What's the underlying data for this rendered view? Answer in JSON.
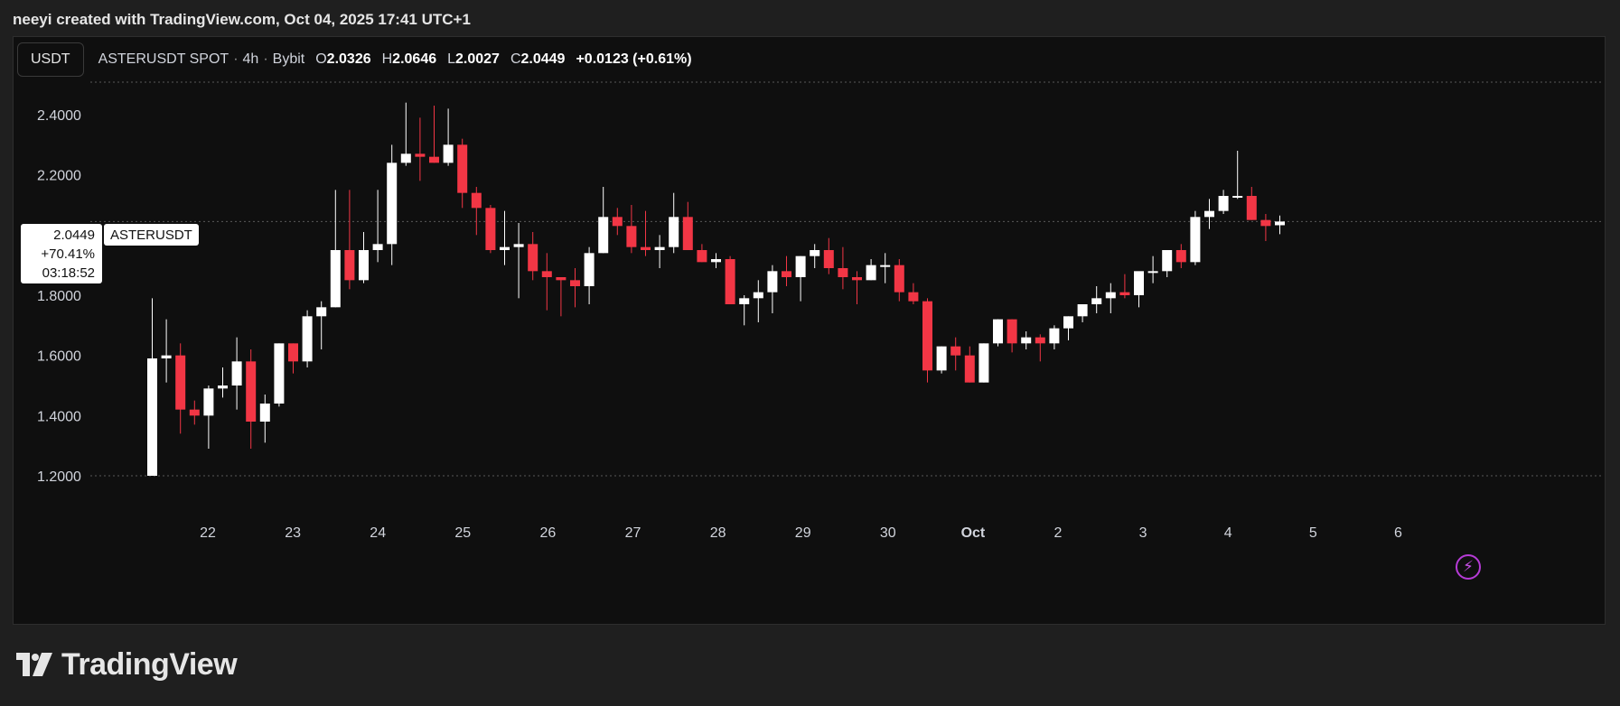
{
  "topbar": {
    "text": "neeyi created with TradingView.com, Oct 04, 2025 17:41 UTC+1"
  },
  "header": {
    "currency": "USDT",
    "symbol": "ASTERUSDT SPOT",
    "interval": "4h",
    "exchange": "Bybit",
    "open_label": "O",
    "open": "2.0326",
    "high_label": "H",
    "high": "2.0646",
    "low_label": "L",
    "low": "2.0027",
    "close_label": "C",
    "close": "2.0449",
    "change": "+0.0123 (+0.61%)"
  },
  "price_tag": {
    "price": "2.0449",
    "percent": "+70.41%",
    "countdown": "03:18:52",
    "symbol": "ASTERUSDT"
  },
  "footer": {
    "brand": "TradingView"
  },
  "colors": {
    "up": "#ffffff",
    "down": "#f23645",
    "background": "#0f0f0f",
    "grid": "#5a5a5a",
    "accent": "#b63bd6"
  },
  "icons": {
    "lightning": "lightning-icon",
    "logo": "tradingview-logo-icon"
  },
  "chart_data": {
    "type": "candlestick",
    "title": "",
    "xlabel": "",
    "ylabel": "",
    "ylim": [
      1.12,
      2.44
    ],
    "y_ticks": [
      "2.4000",
      "2.2000",
      "1.8000",
      "1.6000",
      "1.4000",
      "1.2000"
    ],
    "x_ticks": [
      "22",
      "23",
      "24",
      "25",
      "26",
      "27",
      "28",
      "29",
      "30",
      "Oct",
      "2",
      "3",
      "4",
      "5",
      "6"
    ],
    "last_price": 2.0449,
    "grid": "dotted horizontal lines at top, bottom and last price",
    "series": [
      {
        "ohlc": [
          [
            1.2,
            1.79,
            1.2,
            1.59
          ],
          [
            1.59,
            1.72,
            1.51,
            1.6
          ],
          [
            1.6,
            1.64,
            1.34,
            1.42
          ],
          [
            1.42,
            1.45,
            1.37,
            1.4
          ],
          [
            1.4,
            1.5,
            1.29,
            1.49
          ],
          [
            1.49,
            1.56,
            1.46,
            1.5
          ],
          [
            1.5,
            1.66,
            1.42,
            1.58
          ],
          [
            1.58,
            1.62,
            1.29,
            1.38
          ],
          [
            1.38,
            1.47,
            1.31,
            1.44
          ],
          [
            1.44,
            1.64,
            1.43,
            1.64
          ],
          [
            1.64,
            1.64,
            1.54,
            1.58
          ],
          [
            1.58,
            1.75,
            1.56,
            1.73
          ],
          [
            1.73,
            1.78,
            1.62,
            1.76
          ],
          [
            1.76,
            2.15,
            1.76,
            1.95
          ],
          [
            1.95,
            2.15,
            1.82,
            1.85
          ],
          [
            1.85,
            2.01,
            1.84,
            1.95
          ],
          [
            1.95,
            2.15,
            1.91,
            1.97
          ],
          [
            1.97,
            2.3,
            1.9,
            2.24
          ],
          [
            2.24,
            2.44,
            2.23,
            2.27
          ],
          [
            2.27,
            2.39,
            2.18,
            2.26
          ],
          [
            2.26,
            2.43,
            2.24,
            2.24
          ],
          [
            2.24,
            2.42,
            2.23,
            2.3
          ],
          [
            2.3,
            2.32,
            2.09,
            2.14
          ],
          [
            2.14,
            2.16,
            2.0,
            2.09
          ],
          [
            2.09,
            2.1,
            1.94,
            1.95
          ],
          [
            1.95,
            2.08,
            1.9,
            1.96
          ],
          [
            1.96,
            2.04,
            1.79,
            1.97
          ],
          [
            1.97,
            2.01,
            1.85,
            1.88
          ],
          [
            1.88,
            1.94,
            1.75,
            1.86
          ],
          [
            1.86,
            1.86,
            1.73,
            1.85
          ],
          [
            1.85,
            1.89,
            1.76,
            1.83
          ],
          [
            1.83,
            1.96,
            1.77,
            1.94
          ],
          [
            1.94,
            2.16,
            1.94,
            2.06
          ],
          [
            2.06,
            2.09,
            2.0,
            2.03
          ],
          [
            2.03,
            2.1,
            1.94,
            1.96
          ],
          [
            1.96,
            2.08,
            1.93,
            1.95
          ],
          [
            1.95,
            2.0,
            1.89,
            1.96
          ],
          [
            1.96,
            2.14,
            1.94,
            2.06
          ],
          [
            2.06,
            2.11,
            1.95,
            1.95
          ],
          [
            1.95,
            1.97,
            1.91,
            1.91
          ],
          [
            1.91,
            1.94,
            1.89,
            1.92
          ],
          [
            1.92,
            1.93,
            1.77,
            1.77
          ],
          [
            1.77,
            1.8,
            1.7,
            1.79
          ],
          [
            1.79,
            1.85,
            1.71,
            1.81
          ],
          [
            1.81,
            1.9,
            1.74,
            1.88
          ],
          [
            1.88,
            1.93,
            1.83,
            1.86
          ],
          [
            1.86,
            1.93,
            1.78,
            1.93
          ],
          [
            1.93,
            1.97,
            1.89,
            1.95
          ],
          [
            1.95,
            1.99,
            1.87,
            1.89
          ],
          [
            1.89,
            1.96,
            1.82,
            1.86
          ],
          [
            1.86,
            1.88,
            1.77,
            1.85
          ],
          [
            1.85,
            1.92,
            1.85,
            1.9
          ],
          [
            1.9,
            1.94,
            1.84,
            1.9
          ],
          [
            1.9,
            1.92,
            1.78,
            1.81
          ],
          [
            1.81,
            1.84,
            1.77,
            1.78
          ],
          [
            1.78,
            1.79,
            1.51,
            1.55
          ],
          [
            1.55,
            1.63,
            1.54,
            1.63
          ],
          [
            1.63,
            1.66,
            1.55,
            1.6
          ],
          [
            1.6,
            1.63,
            1.51,
            1.51
          ],
          [
            1.51,
            1.64,
            1.51,
            1.64
          ],
          [
            1.64,
            1.72,
            1.63,
            1.72
          ],
          [
            1.72,
            1.72,
            1.61,
            1.64
          ],
          [
            1.64,
            1.68,
            1.62,
            1.66
          ],
          [
            1.66,
            1.67,
            1.58,
            1.64
          ],
          [
            1.64,
            1.7,
            1.62,
            1.69
          ],
          [
            1.69,
            1.73,
            1.65,
            1.73
          ],
          [
            1.73,
            1.77,
            1.71,
            1.77
          ],
          [
            1.77,
            1.83,
            1.74,
            1.79
          ],
          [
            1.79,
            1.84,
            1.74,
            1.81
          ],
          [
            1.81,
            1.87,
            1.79,
            1.8
          ],
          [
            1.8,
            1.87,
            1.76,
            1.88
          ],
          [
            1.88,
            1.93,
            1.84,
            1.88
          ],
          [
            1.88,
            1.94,
            1.86,
            1.95
          ],
          [
            1.95,
            1.97,
            1.89,
            1.91
          ],
          [
            1.91,
            2.08,
            1.9,
            2.06
          ],
          [
            2.06,
            2.12,
            2.02,
            2.08
          ],
          [
            2.08,
            2.15,
            2.07,
            2.13
          ],
          [
            2.13,
            2.28,
            2.12,
            2.13
          ],
          [
            2.13,
            2.16,
            2.05,
            2.05
          ],
          [
            2.05,
            2.07,
            1.98,
            2.03
          ],
          [
            2.0326,
            2.0646,
            2.0027,
            2.0449
          ]
        ]
      }
    ]
  }
}
